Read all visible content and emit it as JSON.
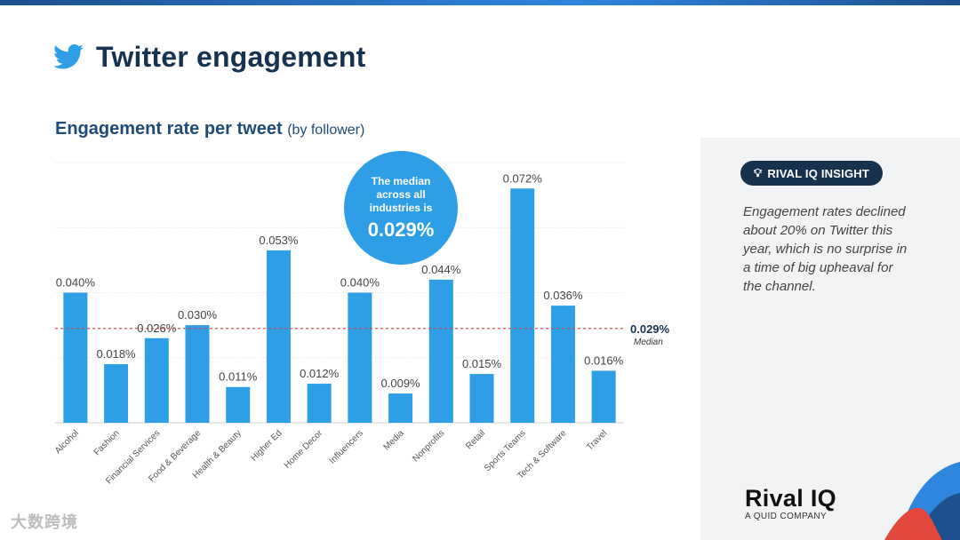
{
  "header": {
    "title": "Twitter engagement",
    "icon": "twitter-bird-icon"
  },
  "chart_header": {
    "main": "Engagement rate per tweet",
    "sub": "(by follower)"
  },
  "colors": {
    "bar": "#2e9fe6",
    "median_line": "#d9453b",
    "bubble": "#2e9fe6",
    "title": "#17324f"
  },
  "chart_data": {
    "type": "bar",
    "title": "Engagement rate per tweet",
    "subtitle": "(by follower)",
    "xlabel": "",
    "ylabel": "",
    "ylim": [
      0,
      0.08
    ],
    "grid": true,
    "categories": [
      "Alcohol",
      "Fashion",
      "Financial Services",
      "Food & Beverage",
      "Health & Beauty",
      "Higher Ed",
      "Home Decor",
      "Influencers",
      "Media",
      "Nonprofits",
      "Retail",
      "Sports Teams",
      "Tech & Software",
      "Travel"
    ],
    "values": [
      0.04,
      0.018,
      0.026,
      0.03,
      0.011,
      0.053,
      0.012,
      0.04,
      0.009,
      0.044,
      0.015,
      0.072,
      0.036,
      0.016
    ],
    "value_labels": [
      "0.040%",
      "0.018%",
      "0.026%",
      "0.030%",
      "0.011%",
      "0.053%",
      "0.012%",
      "0.040%",
      "0.009%",
      "0.044%",
      "0.015%",
      "0.072%",
      "0.036%",
      "0.016%"
    ],
    "median": {
      "value": 0.029,
      "label": "0.029%",
      "caption": "Median"
    },
    "callout": {
      "text": "The median across all industries is",
      "value": "0.029%"
    }
  },
  "insight": {
    "badge": "RIVAL IQ INSIGHT",
    "icon": "lightbulb-icon",
    "text": "Engagement rates declined about 20% on Twitter this year, which is no surprise in a time of big upheaval for the channel."
  },
  "logo": {
    "brand": "Rival IQ",
    "tagline": "A QUID COMPANY"
  },
  "watermark": {
    "text": "大数跨境"
  }
}
